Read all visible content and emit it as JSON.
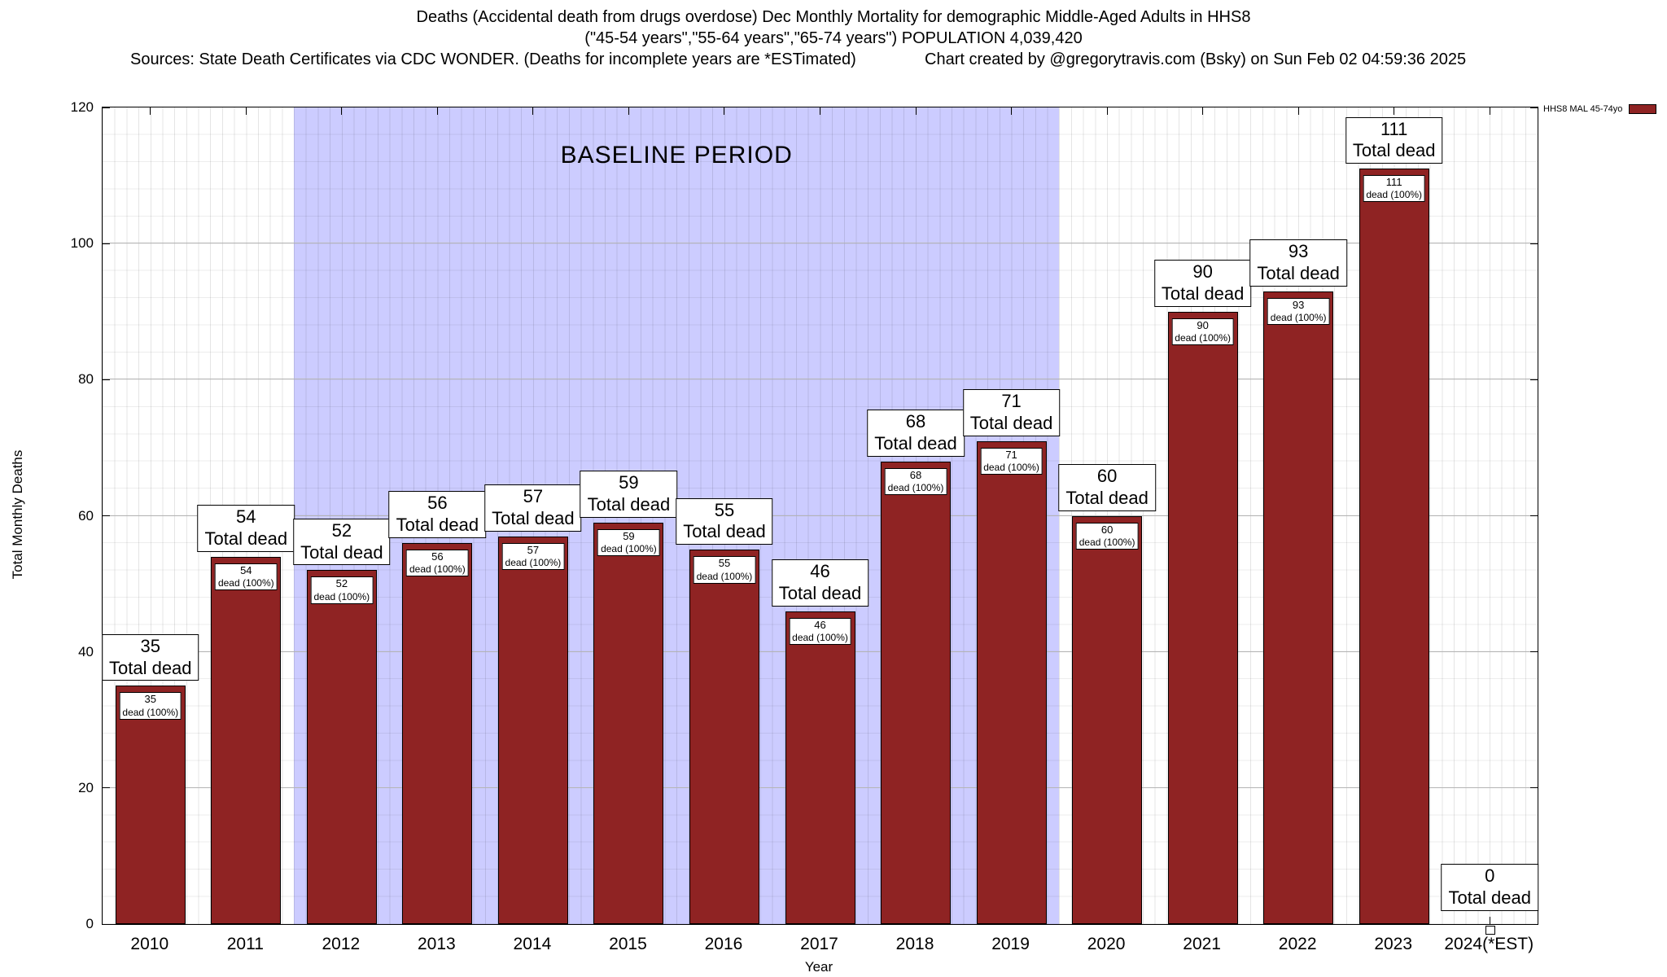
{
  "header": {
    "title_line1": "Deaths (Accidental death from drugs overdose) Dec Monthly Mortality for demographic Middle-Aged Adults in HHS8",
    "title_line2": "(\"45-54 years\",\"55-64 years\",\"65-74 years\") POPULATION 4,039,420",
    "sources": "Sources: State Death Certificates via CDC WONDER. (Deaths for incomplete years are *ESTimated)",
    "credit": "Chart created by @gregorytravis.com (Bsky) on Sun Feb 02 04:59:36 2025"
  },
  "legend": {
    "label": "HHS8 MAL 45-74yo",
    "swatch_color": "#8f2323"
  },
  "chart_data": {
    "type": "bar",
    "title": "Deaths (Accidental death from drugs overdose) Dec Monthly Mortality for demographic Middle-Aged Adults in HHS8",
    "xlabel": "Year",
    "ylabel": "Total Monthly Deaths",
    "ylim": [
      0,
      120
    ],
    "yticks": [
      0,
      20,
      40,
      60,
      80,
      100,
      120
    ],
    "grid": true,
    "legend_position": "top-right",
    "categories": [
      "2010",
      "2011",
      "2012",
      "2013",
      "2014",
      "2015",
      "2016",
      "2017",
      "2018",
      "2019",
      "2020",
      "2021",
      "2022",
      "2023",
      "2024(*EST)"
    ],
    "values": [
      35,
      54,
      52,
      56,
      57,
      59,
      55,
      46,
      68,
      71,
      60,
      90,
      93,
      111,
      0
    ],
    "bar_color": "#8f2323",
    "annotations": {
      "outer_label_suffix": "Total dead",
      "inner_label_suffix": "dead (100%)"
    },
    "baseline": {
      "label": "BASELINE PERIOD",
      "from_category": "2012",
      "to_category": "2019",
      "color": "#ccccff"
    }
  }
}
